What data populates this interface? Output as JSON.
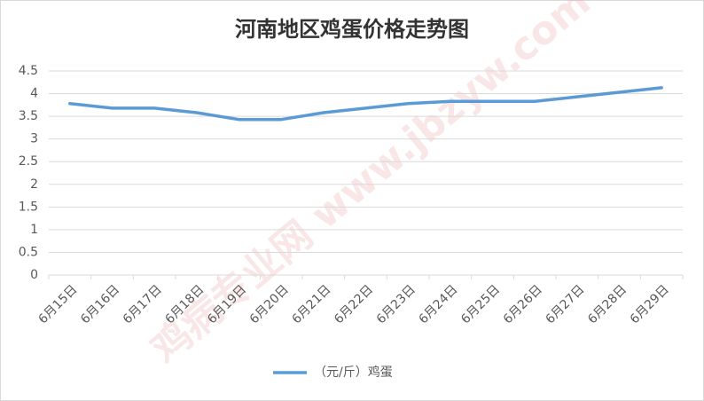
{
  "chart_data": {
    "type": "line",
    "title": "河南地区鸡蛋价格走势图",
    "watermark": "鸡病专业网 www.jbzyw.com",
    "categories": [
      "6月15日",
      "6月16日",
      "6月17日",
      "6月18日",
      "6月19日",
      "6月20日",
      "6月21日",
      "6月22日",
      "6月23日",
      "6月24日",
      "6月25日",
      "6月26日",
      "6月27日",
      "6月28日",
      "6月29日"
    ],
    "series": [
      {
        "name": "（元/斤）鸡蛋",
        "color": "#5b9bd5",
        "values": [
          3.78,
          3.68,
          3.68,
          3.58,
          3.43,
          3.43,
          3.58,
          3.68,
          3.78,
          3.83,
          3.83,
          3.83,
          3.93,
          4.03,
          4.13
        ]
      }
    ],
    "ylim": [
      0,
      4.5
    ],
    "yticks": [
      0,
      0.5,
      1,
      1.5,
      2,
      2.5,
      3,
      3.5,
      4,
      4.5
    ],
    "grid": true,
    "legend": "bottom"
  }
}
